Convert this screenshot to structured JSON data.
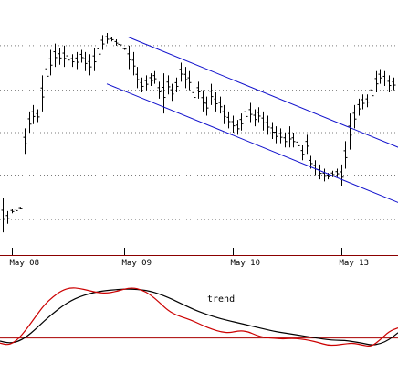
{
  "chart_data": [
    {
      "type": "ohlc",
      "panel": "price",
      "x_labels": [
        "May 08",
        "May 09",
        "May 10",
        "May 13"
      ],
      "x_label_bars": [
        2,
        28,
        53,
        78
      ],
      "bar_count": 91,
      "y_range": [
        0,
        100
      ],
      "grid": true,
      "grid_levels": [
        12,
        33,
        53,
        73,
        94
      ],
      "bars": [
        {
          "h": 22,
          "l": 6
        },
        {
          "h": 16,
          "l": 10
        },
        {
          "h": 17,
          "l": 15
        },
        {
          "h": 18,
          "l": 15
        },
        {
          "h": 18,
          "l": 17
        },
        {
          "h": 55,
          "l": 43
        },
        {
          "h": 63,
          "l": 53
        },
        {
          "h": 66,
          "l": 57
        },
        {
          "h": 64,
          "l": 58
        },
        {
          "h": 80,
          "l": 63
        },
        {
          "h": 88,
          "l": 74
        },
        {
          "h": 92,
          "l": 80
        },
        {
          "h": 95,
          "l": 84
        },
        {
          "h": 93,
          "l": 85
        },
        {
          "h": 94,
          "l": 84
        },
        {
          "h": 92,
          "l": 84
        },
        {
          "h": 90,
          "l": 84
        },
        {
          "h": 91,
          "l": 83
        },
        {
          "h": 92,
          "l": 86
        },
        {
          "h": 91,
          "l": 82
        },
        {
          "h": 90,
          "l": 80
        },
        {
          "h": 93,
          "l": 82
        },
        {
          "h": 96,
          "l": 86
        },
        {
          "h": 99,
          "l": 92
        },
        {
          "h": 100,
          "l": 95
        },
        {
          "h": 98,
          "l": 96
        },
        {
          "h": 97,
          "l": 94
        },
        {
          "h": 95,
          "l": 94
        },
        {
          "h": 93,
          "l": 92
        },
        {
          "h": 94,
          "l": 83
        },
        {
          "h": 91,
          "l": 80
        },
        {
          "h": 84,
          "l": 74
        },
        {
          "h": 79,
          "l": 72
        },
        {
          "h": 80,
          "l": 73
        },
        {
          "h": 81,
          "l": 75
        },
        {
          "h": 82,
          "l": 76
        },
        {
          "h": 77,
          "l": 69
        },
        {
          "h": 81,
          "l": 62
        },
        {
          "h": 80,
          "l": 71
        },
        {
          "h": 76,
          "l": 68
        },
        {
          "h": 79,
          "l": 72
        },
        {
          "h": 86,
          "l": 77
        },
        {
          "h": 84,
          "l": 74
        },
        {
          "h": 82,
          "l": 73
        },
        {
          "h": 75,
          "l": 66
        },
        {
          "h": 77,
          "l": 69
        },
        {
          "h": 73,
          "l": 63
        },
        {
          "h": 70,
          "l": 61
        },
        {
          "h": 76,
          "l": 66
        },
        {
          "h": 72,
          "l": 63
        },
        {
          "h": 70,
          "l": 62
        },
        {
          "h": 66,
          "l": 57
        },
        {
          "h": 63,
          "l": 55
        },
        {
          "h": 61,
          "l": 53
        },
        {
          "h": 59,
          "l": 52
        },
        {
          "h": 62,
          "l": 54
        },
        {
          "h": 66,
          "l": 57
        },
        {
          "h": 67,
          "l": 58
        },
        {
          "h": 64,
          "l": 56
        },
        {
          "h": 65,
          "l": 58
        },
        {
          "h": 63,
          "l": 54
        },
        {
          "h": 61,
          "l": 52
        },
        {
          "h": 58,
          "l": 50
        },
        {
          "h": 56,
          "l": 48
        },
        {
          "h": 55,
          "l": 48
        },
        {
          "h": 53,
          "l": 46
        },
        {
          "h": 56,
          "l": 46
        },
        {
          "h": 53,
          "l": 46
        },
        {
          "h": 51,
          "l": 44
        },
        {
          "h": 47,
          "l": 40
        },
        {
          "h": 52,
          "l": 43
        },
        {
          "h": 42,
          "l": 36
        },
        {
          "h": 40,
          "l": 33
        },
        {
          "h": 38,
          "l": 31
        },
        {
          "h": 36,
          "l": 30
        },
        {
          "h": 34,
          "l": 31
        },
        {
          "h": 35,
          "l": 32
        },
        {
          "h": 36,
          "l": 32
        },
        {
          "h": 38,
          "l": 28
        },
        {
          "h": 49,
          "l": 36
        },
        {
          "h": 62,
          "l": 45
        },
        {
          "h": 66,
          "l": 55
        },
        {
          "h": 69,
          "l": 61
        },
        {
          "h": 71,
          "l": 64
        },
        {
          "h": 71,
          "l": 65
        },
        {
          "h": 77,
          "l": 66
        },
        {
          "h": 82,
          "l": 72
        },
        {
          "h": 83,
          "l": 76
        },
        {
          "h": 82,
          "l": 75
        },
        {
          "h": 80,
          "l": 72
        },
        {
          "h": 79,
          "l": 73
        }
      ],
      "trend_channel": {
        "upper": {
          "x1": 29,
          "y1": 98,
          "x2": 90,
          "y2": 46
        },
        "lower": {
          "x1": 24,
          "y1": 76,
          "x2": 90,
          "y2": 20
        },
        "color": "#1010cc"
      }
    },
    {
      "type": "line",
      "panel": "oscillator",
      "y_range": [
        -10,
        110
      ],
      "zero_line": {
        "value": 28,
        "color": "#aa0000"
      },
      "annotation": "trend",
      "series": [
        {
          "color": "#000000",
          "values": [
            23,
            20,
            22,
            29,
            40,
            52,
            63,
            73,
            81,
            87,
            91,
            94,
            96,
            97,
            98,
            98,
            97,
            95,
            91,
            86,
            80,
            74,
            68,
            63,
            59,
            55,
            52,
            49,
            46,
            43,
            40,
            37,
            35,
            33,
            31,
            29,
            27,
            25,
            24,
            24,
            22,
            20,
            17,
            19,
            25,
            35
          ]
        },
        {
          "color": "#cc0000",
          "values": [
            20,
            17,
            25,
            40,
            58,
            75,
            87,
            96,
            100,
            99,
            96,
            93,
            92,
            94,
            98,
            100,
            97,
            90,
            79,
            67,
            60,
            56,
            51,
            45,
            40,
            36,
            35,
            38,
            37,
            31,
            28,
            27,
            26,
            27,
            26,
            24,
            21,
            17,
            17,
            19,
            20,
            17,
            15,
            25,
            37,
            42
          ]
        }
      ]
    }
  ]
}
